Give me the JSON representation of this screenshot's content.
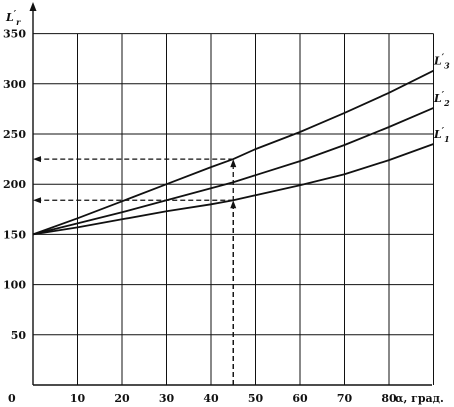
{
  "chart_data": {
    "type": "line",
    "ylabel": "L'r",
    "ylabel_main": "L",
    "ylabel_sub": "r",
    "xlabel": "α, град.",
    "xlim": [
      0,
      90
    ],
    "ylim": [
      0,
      350
    ],
    "x_ticks": [
      "0",
      "10",
      "20",
      "30",
      "40",
      "50",
      "60",
      "70",
      "80"
    ],
    "y_ticks": [
      "50",
      "100",
      "150",
      "200",
      "250",
      "300",
      "350"
    ],
    "grid": true,
    "series": [
      {
        "name": "L'1",
        "name_main": "L",
        "name_sub": "1",
        "x": [
          0,
          10,
          20,
          30,
          40,
          45,
          50,
          60,
          70,
          80,
          90
        ],
        "values": [
          150,
          157,
          165,
          173,
          180,
          184,
          189,
          199,
          210,
          224,
          240
        ]
      },
      {
        "name": "L'2",
        "name_main": "L",
        "name_sub": "2",
        "x": [
          0,
          10,
          20,
          30,
          40,
          45,
          50,
          60,
          70,
          80,
          90
        ],
        "values": [
          150,
          161,
          172,
          184,
          196,
          202,
          209,
          223,
          239,
          257,
          276
        ]
      },
      {
        "name": "L'3",
        "name_main": "L",
        "name_sub": "3",
        "x": [
          0,
          10,
          20,
          30,
          40,
          45,
          50,
          60,
          70,
          80,
          90
        ],
        "values": [
          150,
          166,
          183,
          200,
          217,
          225,
          235,
          252,
          271,
          291,
          313
        ]
      }
    ],
    "annotations": [
      {
        "type": "dashed-guide",
        "x": 45,
        "y": 184
      },
      {
        "type": "dashed-guide",
        "x": 45,
        "y": 225
      }
    ]
  }
}
